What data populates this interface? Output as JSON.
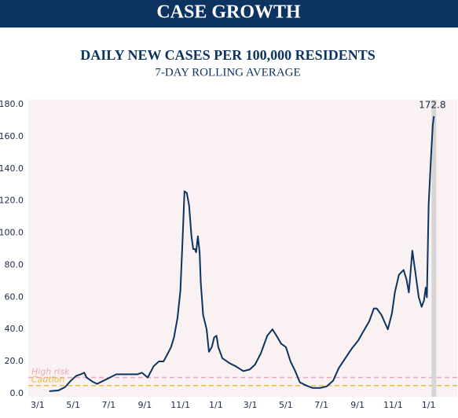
{
  "header": {
    "title": "CASE GROWTH"
  },
  "chart_data": {
    "type": "line",
    "title": "DAILY NEW CASES PER 100,000 RESIDENTS",
    "subtitle": "7-DAY ROLLING AVERAGE",
    "xlim": [
      -16,
      720
    ],
    "ylim": [
      -2,
      183
    ],
    "xticks": [
      {
        "value": 0,
        "label": "3/1"
      },
      {
        "value": 61,
        "label": "5/1"
      },
      {
        "value": 122,
        "label": "7/1"
      },
      {
        "value": 184,
        "label": "9/1"
      },
      {
        "value": 245,
        "label": "11/1"
      },
      {
        "value": 306,
        "label": "1/1"
      },
      {
        "value": 365,
        "label": "3/1"
      },
      {
        "value": 426,
        "label": "5/1"
      },
      {
        "value": 487,
        "label": "7/1"
      },
      {
        "value": 549,
        "label": "9/1"
      },
      {
        "value": 610,
        "label": "11/1"
      },
      {
        "value": 671,
        "label": "1/1"
      }
    ],
    "yticks": [
      {
        "value": 0,
        "label": "0.0"
      },
      {
        "value": 20,
        "label": "20.0"
      },
      {
        "value": 40,
        "label": "40.0"
      },
      {
        "value": 60,
        "label": "60.0"
      },
      {
        "value": 80,
        "label": "80.0"
      },
      {
        "value": 100,
        "label": "100.0"
      },
      {
        "value": 120,
        "label": "120.0"
      },
      {
        "value": 140,
        "label": "140.0"
      },
      {
        "value": 160,
        "label": "160.0"
      },
      {
        "value": 180,
        "label": "180.0"
      }
    ],
    "reference_lines": [
      {
        "label": "High risk",
        "value": 10,
        "color": "#e8a9ba"
      },
      {
        "label": "Caution",
        "value": 5,
        "color": "#e6bf3c"
      }
    ],
    "x": [
      20,
      36,
      47,
      57,
      66,
      74,
      80,
      84,
      94,
      102,
      113,
      124,
      135,
      151,
      162,
      171,
      179,
      189,
      199,
      208,
      216,
      222,
      229,
      234,
      240,
      245,
      249,
      252,
      256,
      260,
      264,
      267,
      270,
      272,
      275,
      278,
      280,
      284,
      290,
      294,
      299,
      303,
      307,
      310,
      317,
      329,
      340,
      353,
      364,
      373,
      383,
      394,
      403,
      410,
      418,
      426,
      434,
      442,
      450,
      461,
      472,
      485,
      496,
      507,
      517,
      528,
      539,
      550,
      561,
      569,
      577,
      582,
      590,
      596,
      601,
      608,
      613,
      620,
      628,
      633,
      637,
      643,
      648,
      654,
      659,
      663,
      666,
      668,
      671,
      675,
      678,
      680
    ],
    "series": [
      {
        "name": "Daily new cases per 100,000",
        "color": "#0d3461",
        "values": [
          1.5,
          2,
          4,
          8,
          11,
          12,
          13,
          10,
          7.5,
          6,
          8,
          10,
          12,
          12,
          12,
          12,
          13,
          10,
          17,
          20,
          20,
          24,
          29,
          35,
          47,
          64,
          98,
          126,
          125,
          117,
          98,
          90,
          90,
          88,
          98,
          88,
          69,
          49,
          40,
          26,
          29,
          35,
          36,
          29,
          22,
          19,
          17,
          14,
          15,
          18,
          25,
          36,
          40,
          36,
          31,
          29,
          20,
          14,
          7,
          5,
          3.5,
          3.5,
          4.5,
          8,
          16,
          22,
          28,
          33,
          40,
          45,
          53,
          53,
          49,
          44,
          40,
          50,
          63,
          74,
          77,
          71,
          63,
          89,
          76,
          60,
          54,
          58,
          66,
          60,
          118,
          147,
          167,
          172.8
        ]
      }
    ]
  }
}
